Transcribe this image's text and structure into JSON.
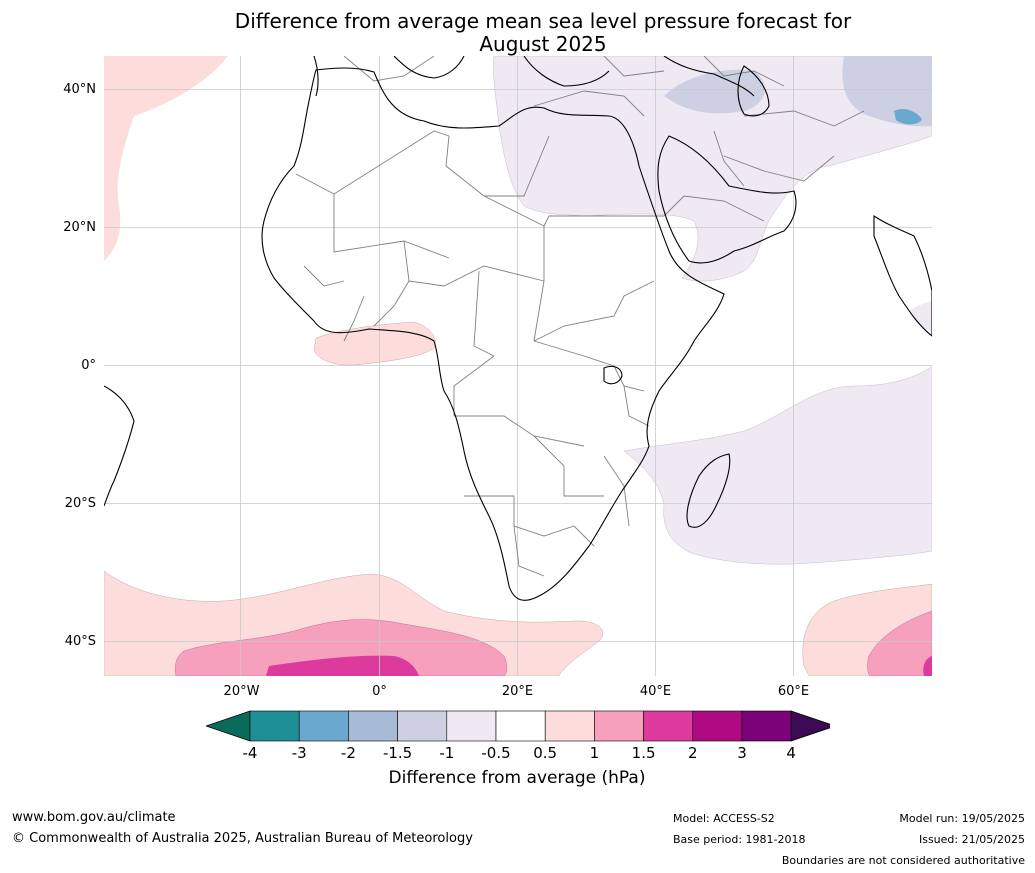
{
  "title_line1": "Difference from average mean sea level pressure forecast for",
  "title_line2": "August 2025",
  "lat_labels": [
    {
      "text": "40°N",
      "lat": 40
    },
    {
      "text": "20°N",
      "lat": 20
    },
    {
      "text": "0°",
      "lat": 0
    },
    {
      "text": "20°S",
      "lat": -20
    },
    {
      "text": "40°S",
      "lat": -40
    }
  ],
  "lon_labels": [
    {
      "text": "20°W",
      "lon": -20
    },
    {
      "text": "0°",
      "lon": 0
    },
    {
      "text": "20°E",
      "lon": 20
    },
    {
      "text": "40°E",
      "lon": 40
    },
    {
      "text": "60°E",
      "lon": 60
    }
  ],
  "colorbar": {
    "label": "Difference from average (hPa)",
    "ticks": [
      "-4",
      "-3",
      "-2",
      "-1.5",
      "-1",
      "-0.5",
      "0.5",
      "1",
      "1.5",
      "2",
      "3",
      "4"
    ],
    "under_color": "#0b6b5a",
    "over_color": "#3b0a52",
    "colors": [
      "#1f8f96",
      "#6aa8d0",
      "#a7bad6",
      "#cdd0e3",
      "#efe9f3",
      "#ffffff",
      "#fddcdc",
      "#f7a0bd",
      "#dd3a9e",
      "#ae0a83",
      "#7a0178"
    ]
  },
  "footer": {
    "website": "www.bom.gov.au/climate",
    "copyright": "© Commonwealth of Australia 2025, Australian Bureau of Meteorology",
    "model": "Model: ACCESS-S2",
    "base_period": "Base period: 1981-2018",
    "model_run": "Model run: 19/05/2025",
    "issued": "Issued: 21/05/2025",
    "boundaries": "Boundaries are not considered authoritative"
  }
}
